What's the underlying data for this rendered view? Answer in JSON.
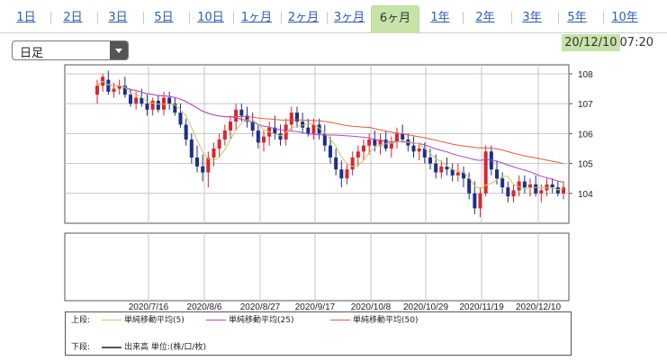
{
  "tabs": [
    {
      "label": "1日",
      "active": false
    },
    {
      "label": "2日",
      "active": false
    },
    {
      "label": "3日",
      "active": false
    },
    {
      "label": "5日",
      "active": false
    },
    {
      "label": "10日",
      "active": false
    },
    {
      "label": "1ヶ月",
      "active": false
    },
    {
      "label": "2ヶ月",
      "active": false
    },
    {
      "label": "3ヶ月",
      "active": false
    },
    {
      "label": "6ヶ月",
      "active": true
    },
    {
      "label": "1年",
      "active": false
    },
    {
      "label": "2年",
      "active": false
    },
    {
      "label": "3年",
      "active": false
    },
    {
      "label": "5年",
      "active": false
    },
    {
      "label": "10年",
      "active": false
    }
  ],
  "interval": {
    "selected": "日足"
  },
  "timestamp": {
    "date": "20/12/10",
    "time": "07:20"
  },
  "legend": {
    "upper_label": "上段:",
    "lower_label": "下段:",
    "sma5": "単純移動平均(5)",
    "sma25": "単純移動平均(25)",
    "sma50": "単純移動平均(50)",
    "volume": "出来高 単位:(株/口/枚)"
  },
  "colors": {
    "up": "#d9262d",
    "down": "#1c2f8c",
    "sma5": "#c8c864",
    "sma25": "#b048c8",
    "sma50": "#e8583c",
    "active_tab": "#c6e3a8"
  },
  "chart_data": {
    "type": "candlestick",
    "x_ticks": [
      "2020/7/16",
      "2020/8/6",
      "2020/8/27",
      "2020/9/17",
      "2020/10/8",
      "2020/10/29",
      "2020/11/19",
      "2020/12/10"
    ],
    "y_ticks": [
      104,
      105,
      106,
      107,
      108
    ],
    "ylim": [
      103.0,
      108.3
    ],
    "grid": true,
    "ohlc": [
      [
        107.3,
        107.8,
        107.0,
        107.6
      ],
      [
        107.6,
        108.0,
        107.4,
        107.9
      ],
      [
        107.8,
        108.1,
        107.3,
        107.4
      ],
      [
        107.4,
        107.7,
        107.2,
        107.5
      ],
      [
        107.5,
        107.8,
        107.3,
        107.6
      ],
      [
        107.6,
        107.9,
        107.2,
        107.3
      ],
      [
        107.3,
        107.5,
        106.9,
        107.0
      ],
      [
        107.0,
        107.4,
        106.8,
        107.2
      ],
      [
        107.2,
        107.5,
        106.9,
        107.0
      ],
      [
        107.0,
        107.3,
        106.6,
        106.8
      ],
      [
        106.8,
        107.2,
        106.6,
        107.1
      ],
      [
        107.1,
        107.3,
        106.7,
        106.8
      ],
      [
        106.8,
        107.4,
        106.6,
        107.2
      ],
      [
        107.2,
        107.4,
        106.8,
        107.0
      ],
      [
        107.0,
        107.2,
        106.6,
        106.7
      ],
      [
        106.7,
        107.0,
        106.2,
        106.3
      ],
      [
        106.3,
        106.5,
        105.6,
        105.8
      ],
      [
        105.8,
        106.0,
        105.0,
        105.2
      ],
      [
        105.2,
        105.6,
        104.7,
        104.9
      ],
      [
        104.9,
        105.3,
        104.4,
        104.7
      ],
      [
        104.7,
        105.4,
        104.2,
        105.2
      ],
      [
        105.2,
        105.7,
        104.9,
        105.5
      ],
      [
        105.5,
        106.0,
        105.2,
        105.8
      ],
      [
        105.8,
        106.3,
        105.6,
        106.1
      ],
      [
        106.1,
        106.6,
        105.8,
        106.4
      ],
      [
        106.4,
        107.0,
        106.1,
        106.8
      ],
      [
        106.8,
        107.0,
        106.4,
        106.6
      ],
      [
        106.6,
        106.9,
        106.2,
        106.4
      ],
      [
        106.4,
        106.7,
        105.9,
        106.1
      ],
      [
        106.1,
        106.3,
        105.5,
        105.7
      ],
      [
        105.7,
        106.1,
        105.4,
        105.9
      ],
      [
        105.9,
        106.4,
        105.6,
        106.2
      ],
      [
        106.2,
        106.6,
        105.8,
        106.0
      ],
      [
        106.0,
        106.3,
        105.6,
        105.8
      ],
      [
        105.8,
        106.5,
        105.6,
        106.3
      ],
      [
        106.3,
        106.9,
        106.1,
        106.7
      ],
      [
        106.7,
        106.9,
        106.2,
        106.4
      ],
      [
        106.4,
        106.7,
        106.0,
        106.2
      ],
      [
        106.2,
        106.5,
        105.9,
        106.0
      ],
      [
        106.0,
        106.5,
        105.8,
        106.3
      ],
      [
        106.3,
        106.5,
        105.8,
        106.0
      ],
      [
        106.0,
        106.3,
        105.4,
        105.6
      ],
      [
        105.6,
        105.9,
        105.0,
        105.2
      ],
      [
        105.2,
        105.5,
        104.6,
        104.8
      ],
      [
        104.8,
        105.1,
        104.2,
        104.5
      ],
      [
        104.5,
        105.0,
        104.3,
        104.8
      ],
      [
        104.8,
        105.4,
        104.6,
        105.2
      ],
      [
        105.2,
        105.6,
        104.9,
        105.4
      ],
      [
        105.4,
        105.8,
        105.1,
        105.6
      ],
      [
        105.6,
        106.0,
        105.3,
        105.8
      ],
      [
        105.8,
        106.1,
        105.4,
        105.6
      ],
      [
        105.6,
        106.0,
        105.3,
        105.8
      ],
      [
        105.8,
        106.1,
        105.4,
        105.5
      ],
      [
        105.5,
        105.9,
        105.2,
        105.7
      ],
      [
        105.7,
        106.2,
        105.5,
        106.0
      ],
      [
        106.0,
        106.3,
        105.7,
        105.8
      ],
      [
        105.8,
        106.0,
        105.4,
        105.6
      ],
      [
        105.6,
        105.9,
        105.2,
        105.4
      ],
      [
        105.4,
        105.7,
        105.1,
        105.5
      ],
      [
        105.5,
        105.7,
        105.0,
        105.2
      ],
      [
        105.2,
        105.5,
        104.8,
        105.0
      ],
      [
        105.0,
        105.3,
        104.5,
        104.7
      ],
      [
        104.7,
        105.1,
        104.5,
        104.9
      ],
      [
        104.9,
        105.2,
        104.6,
        104.8
      ],
      [
        104.8,
        105.0,
        104.4,
        104.6
      ],
      [
        104.6,
        105.0,
        104.4,
        104.7
      ],
      [
        104.7,
        104.9,
        104.2,
        104.5
      ],
      [
        104.5,
        104.7,
        103.8,
        104.0
      ],
      [
        104.0,
        104.4,
        103.3,
        103.5
      ],
      [
        103.5,
        104.2,
        103.2,
        104.0
      ],
      [
        104.0,
        105.6,
        103.9,
        105.4
      ],
      [
        105.4,
        105.6,
        104.6,
        104.8
      ],
      [
        104.8,
        105.1,
        104.3,
        104.5
      ],
      [
        104.5,
        104.7,
        104.0,
        104.2
      ],
      [
        104.2,
        104.4,
        103.7,
        103.9
      ],
      [
        103.9,
        104.3,
        103.7,
        104.1
      ],
      [
        104.1,
        104.6,
        103.9,
        104.4
      ],
      [
        104.4,
        104.6,
        104.0,
        104.2
      ],
      [
        104.2,
        104.5,
        103.9,
        104.3
      ],
      [
        104.3,
        104.6,
        103.9,
        104.0
      ],
      [
        104.0,
        104.3,
        103.7,
        104.1
      ],
      [
        104.1,
        104.5,
        103.9,
        104.3
      ],
      [
        104.3,
        104.5,
        104.0,
        104.2
      ],
      [
        104.2,
        104.4,
        103.9,
        104.0
      ],
      [
        104.0,
        104.4,
        103.8,
        104.2
      ]
    ]
  }
}
